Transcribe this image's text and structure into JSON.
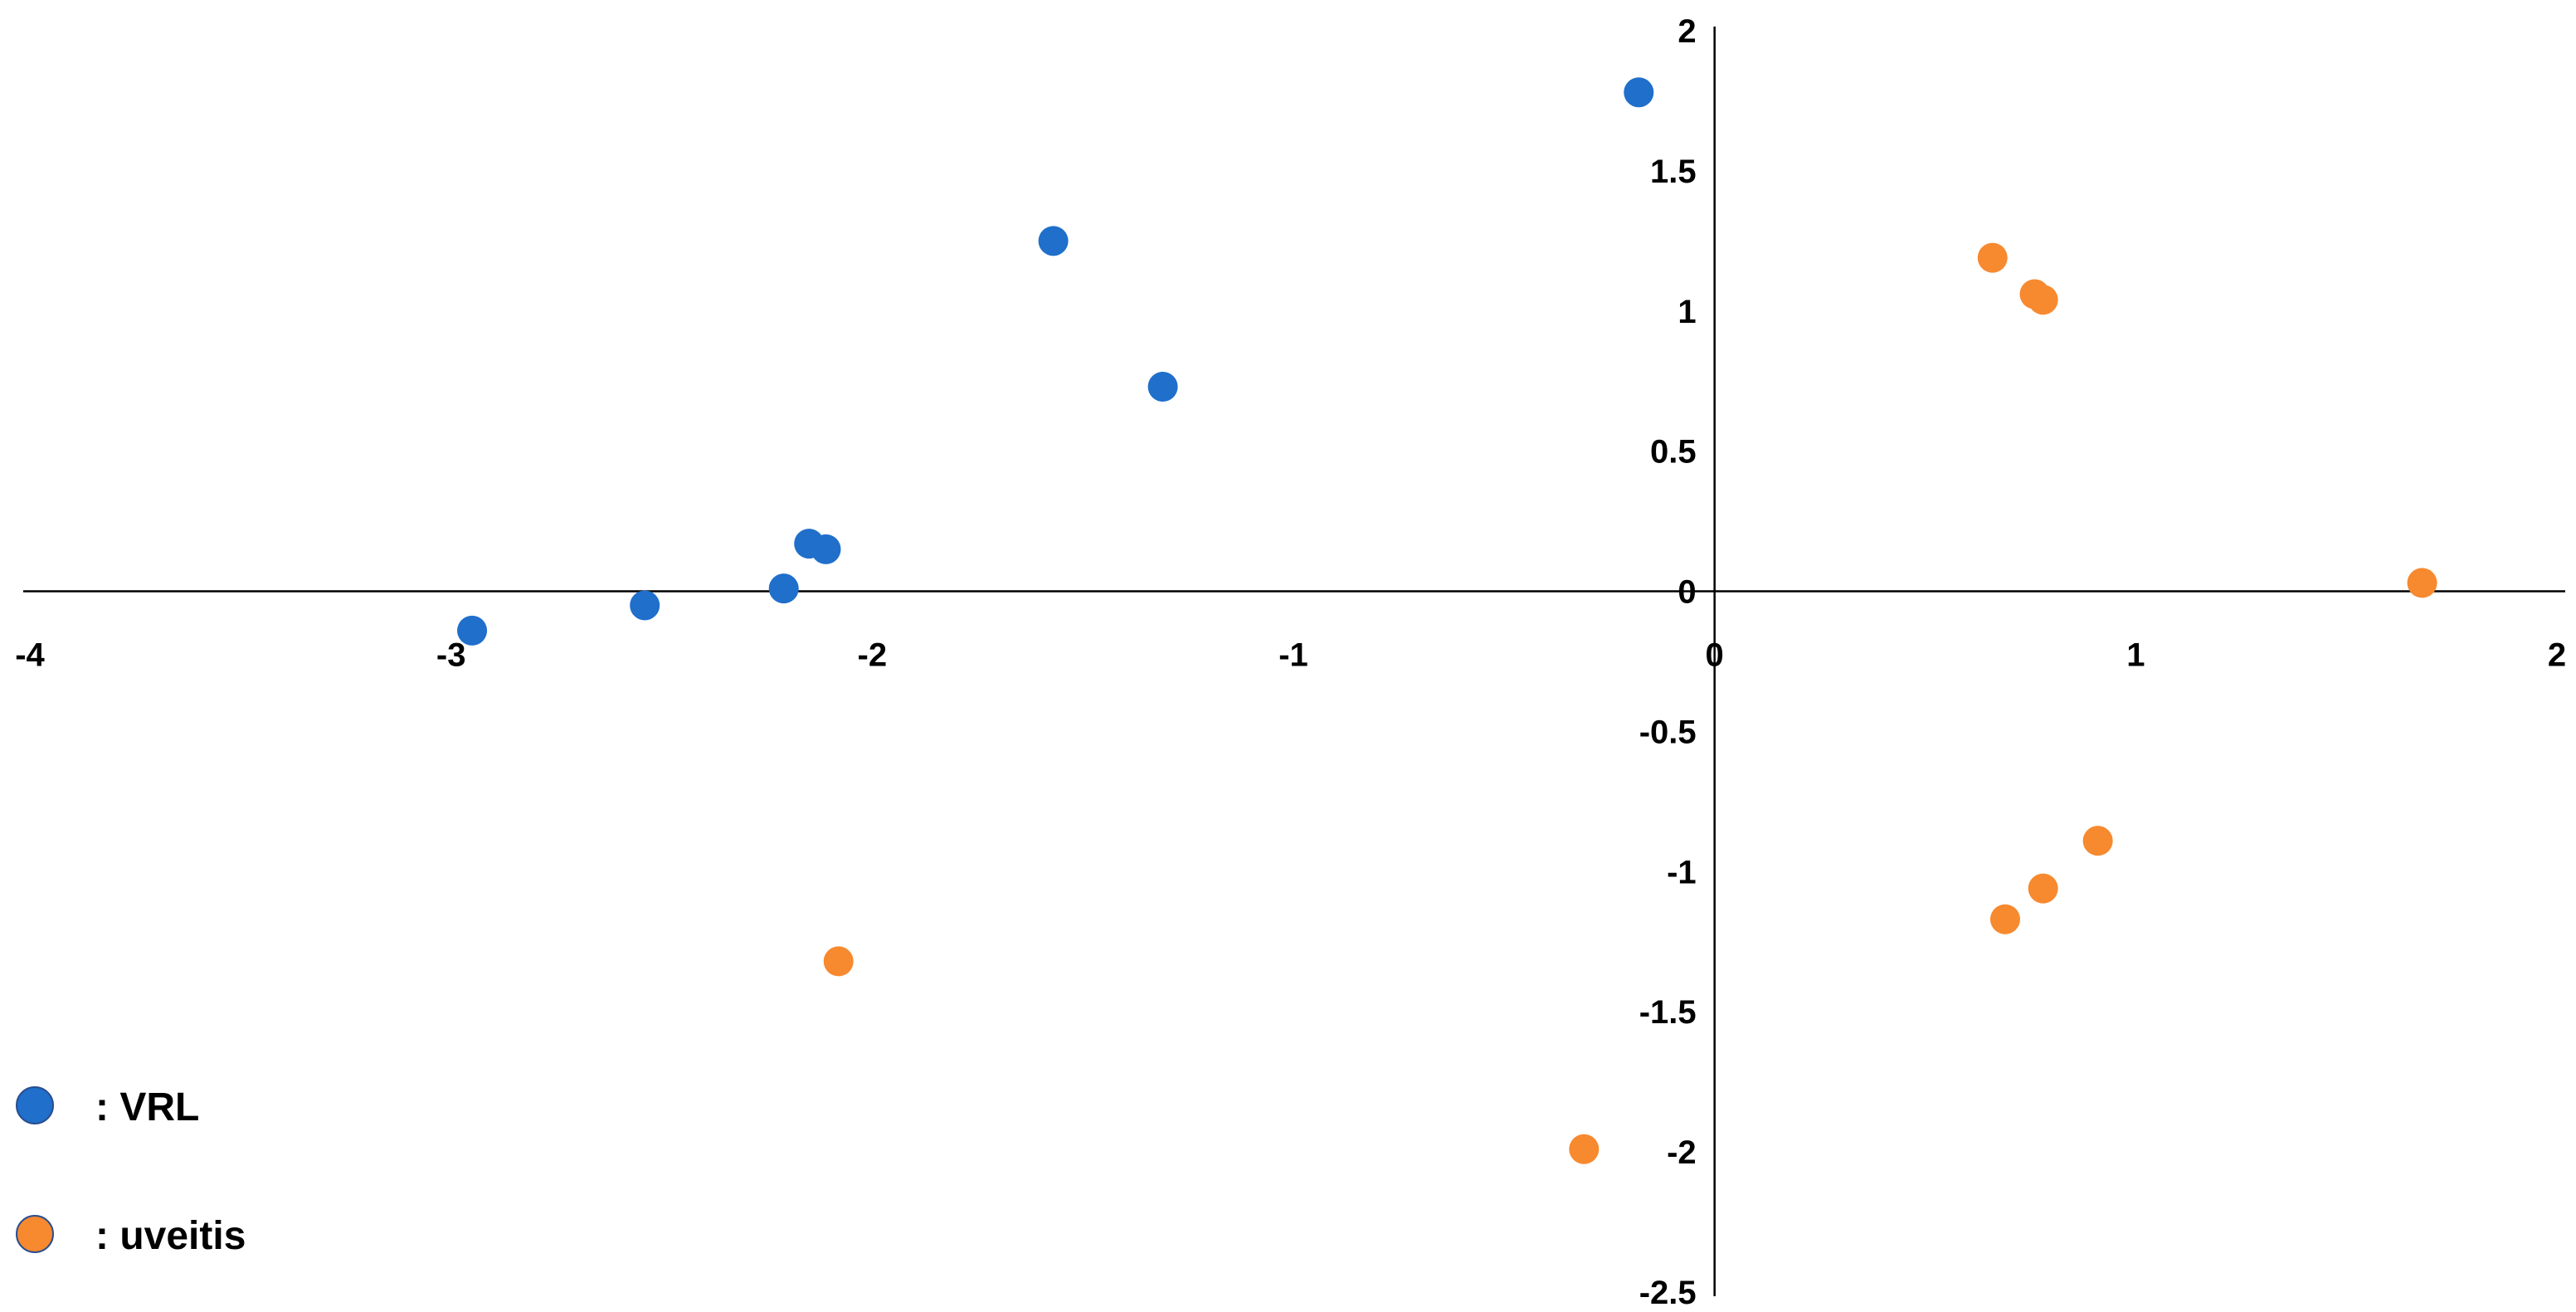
{
  "chart_data": {
    "type": "scatter",
    "title": "",
    "xlabel": "",
    "ylabel": "",
    "xlim": [
      -4,
      2
    ],
    "ylim": [
      -2.5,
      2
    ],
    "grid": false,
    "legend_position": "bottom-left",
    "x_ticks": [
      -4,
      -3,
      -2,
      -1,
      0,
      1,
      2
    ],
    "y_ticks": [
      -2.5,
      -2,
      -1.5,
      -1,
      -0.5,
      0,
      0.5,
      1,
      1.5,
      2
    ],
    "x_tick_labels": [
      "-4",
      "-3",
      "-2",
      "-1",
      "0",
      "1",
      "2"
    ],
    "y_tick_labels": [
      "-2.5",
      "-2",
      "-1.5",
      "-1",
      "-0.5",
      "0",
      "0.5",
      "1",
      "1.5",
      "2"
    ],
    "series": [
      {
        "name": ": VRL",
        "color": "#1f6fcb",
        "points": [
          [
            -0.18,
            1.78
          ],
          [
            -1.57,
            1.25
          ],
          [
            -1.31,
            0.73
          ],
          [
            -2.15,
            0.17
          ],
          [
            -2.11,
            0.15
          ],
          [
            -2.21,
            0.01
          ],
          [
            -2.54,
            -0.05
          ],
          [
            -2.95,
            -0.14
          ]
        ]
      },
      {
        "name": ": uveitis",
        "color": "#f7892f",
        "points": [
          [
            0.66,
            1.19
          ],
          [
            0.76,
            1.06
          ],
          [
            0.78,
            1.04
          ],
          [
            1.68,
            0.03
          ],
          [
            0.91,
            -0.89
          ],
          [
            0.78,
            -1.06
          ],
          [
            0.69,
            -1.17
          ],
          [
            -2.08,
            -1.32
          ],
          [
            -0.31,
            -1.99
          ]
        ]
      }
    ]
  }
}
